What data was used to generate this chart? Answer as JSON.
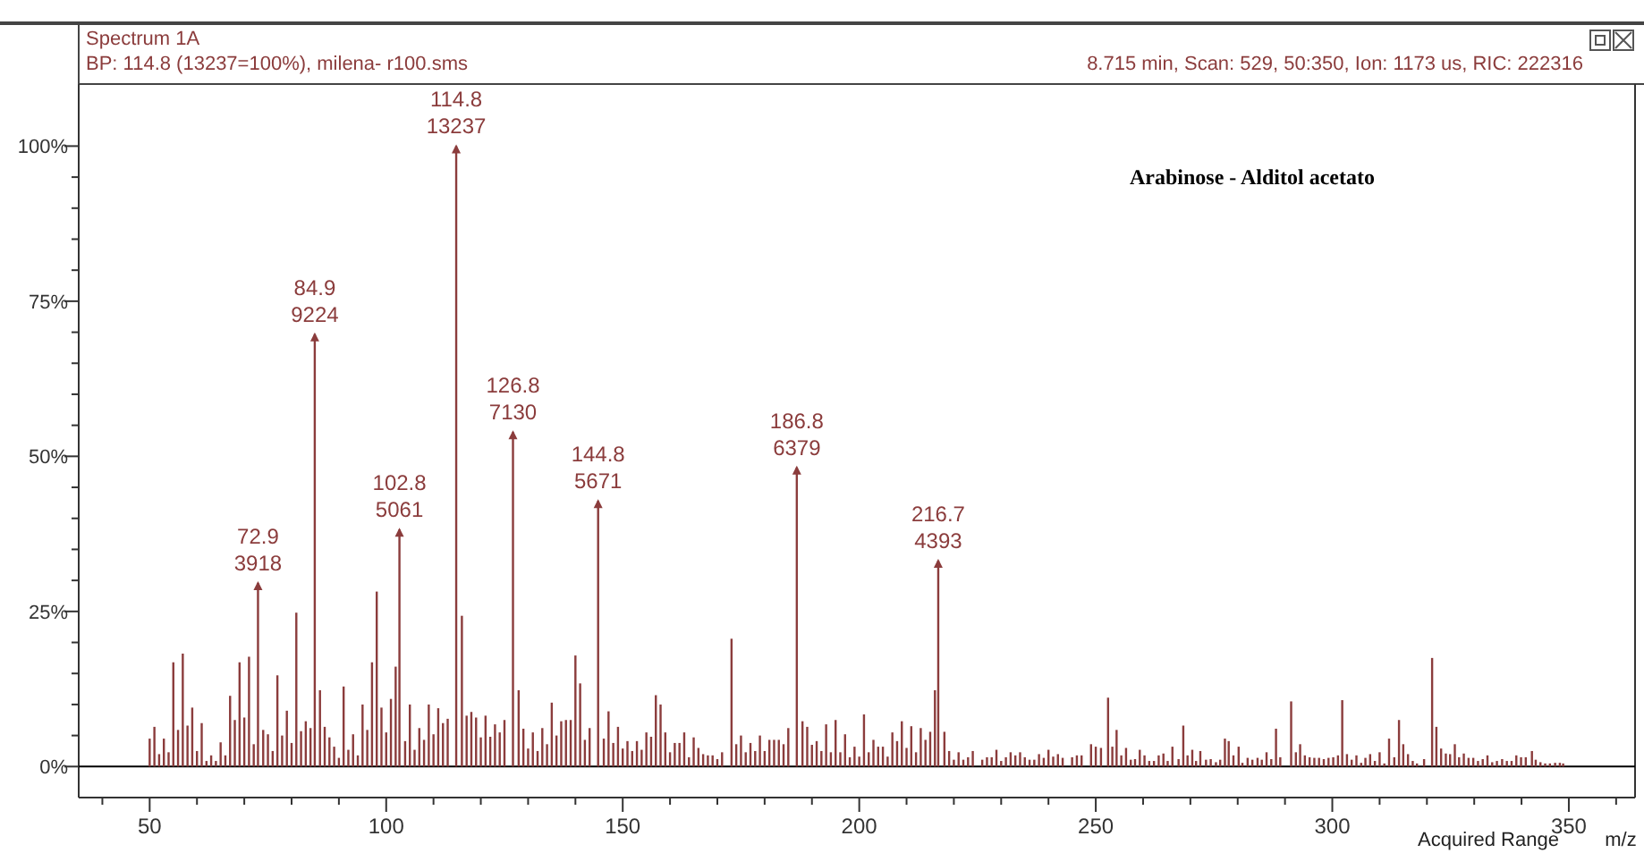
{
  "chart_data": {
    "type": "bar",
    "title": "Spectrum 1A",
    "subtitle": "BP: 114.8 (13237=100%), milena- r100.sms",
    "xlabel": "m/z",
    "xlim": [
      35,
      364
    ],
    "ylim": [
      -5,
      110
    ],
    "xticks": [
      {
        "value": 40,
        "label": null
      },
      50,
      {
        "value": 60,
        "label": null
      },
      {
        "value": 70,
        "label": null
      },
      {
        "value": 80,
        "label": null
      },
      {
        "value": 90,
        "label": null
      },
      100,
      {
        "value": 110,
        "label": null
      },
      {
        "value": 120,
        "label": null
      },
      {
        "value": 130,
        "label": null
      },
      {
        "value": 140,
        "label": null
      },
      150,
      {
        "value": 160,
        "label": null
      },
      {
        "value": 170,
        "label": null
      },
      {
        "value": 180,
        "label": null
      },
      {
        "value": 190,
        "label": null
      },
      200,
      {
        "value": 210,
        "label": null
      },
      {
        "value": 220,
        "label": null
      },
      {
        "value": 230,
        "label": null
      },
      {
        "value": 240,
        "label": null
      },
      250,
      {
        "value": 260,
        "label": null
      },
      {
        "value": 270,
        "label": null
      },
      {
        "value": 280,
        "label": null
      },
      {
        "value": 290,
        "label": null
      },
      300,
      {
        "value": 310,
        "label": null
      },
      {
        "value": 320,
        "label": null
      },
      {
        "value": 330,
        "label": null
      },
      {
        "value": 340,
        "label": null
      },
      350,
      {
        "value": 360,
        "label": null
      }
    ],
    "yticks": [
      {
        "value": 0,
        "label": "0%"
      },
      {
        "value": 5,
        "label": null
      },
      {
        "value": 10,
        "label": null
      },
      {
        "value": 15,
        "label": null
      },
      {
        "value": 20,
        "label": null
      },
      {
        "value": 25,
        "label": "25%"
      },
      {
        "value": 30,
        "label": null
      },
      {
        "value": 35,
        "label": null
      },
      {
        "value": 40,
        "label": null
      },
      {
        "value": 45,
        "label": null
      },
      {
        "value": 50,
        "label": "50%"
      },
      {
        "value": 55,
        "label": null
      },
      {
        "value": 60,
        "label": null
      },
      {
        "value": 65,
        "label": null
      },
      {
        "value": 70,
        "label": null
      },
      {
        "value": 75,
        "label": "75%"
      },
      {
        "value": 80,
        "label": null
      },
      {
        "value": 85,
        "label": null
      },
      {
        "value": 90,
        "label": null
      },
      {
        "value": 95,
        "label": null
      },
      {
        "value": 100,
        "label": "100%"
      }
    ],
    "color": "#8b3c3c",
    "x": [
      50,
      51,
      52,
      53,
      54,
      55,
      56,
      57,
      58,
      59,
      60,
      61,
      62,
      63,
      64,
      65,
      66,
      67,
      68,
      69,
      70,
      71,
      72,
      72.9,
      74,
      75,
      76,
      77,
      78,
      79,
      80,
      81,
      82,
      83,
      84,
      84.9,
      86,
      87,
      88,
      89,
      90,
      91,
      92,
      93,
      94,
      95,
      96,
      97,
      98,
      99,
      100,
      101,
      102,
      102.8,
      104,
      105,
      106,
      107,
      108,
      109,
      110,
      111,
      112,
      113,
      114.8,
      116,
      117,
      118,
      119,
      120,
      121,
      122,
      123,
      124,
      125,
      126.8,
      128,
      129,
      130,
      131,
      132,
      133,
      134,
      135,
      136,
      137,
      138,
      139,
      140,
      141,
      142,
      143,
      144.8,
      146,
      147,
      148,
      149,
      150,
      151,
      152,
      153,
      154,
      155,
      156,
      157,
      158,
      159,
      160,
      161,
      162,
      163,
      164,
      165,
      166,
      167,
      168,
      169,
      170,
      171,
      173,
      174,
      175,
      176,
      177,
      178,
      179,
      180,
      181,
      182,
      183,
      184,
      185,
      186.8,
      188,
      189,
      190,
      191,
      192,
      193,
      194,
      195,
      196,
      197,
      198,
      199,
      200,
      201,
      202,
      203,
      204,
      205,
      206,
      207,
      208,
      209,
      210,
      211,
      212,
      213,
      214,
      215,
      216,
      216.7,
      218,
      219,
      220,
      221,
      222,
      223,
      224,
      226,
      227,
      228,
      229,
      230,
      231,
      232,
      233,
      234,
      235,
      236,
      237,
      238,
      239,
      240,
      241,
      242,
      243,
      245,
      246,
      247,
      249,
      250,
      251.1,
      252.6,
      253.5,
      254.4,
      255.4,
      256.4,
      257.4,
      258.3,
      259.3,
      260.3,
      261.3,
      262.3,
      263.3,
      264.3,
      265.2,
      266.2,
      267.5,
      268.5,
      269.4,
      270.4,
      271.2,
      272.1,
      273.3,
      274.3,
      275.4,
      276.3,
      277.3,
      278.1,
      279.1,
      280.2,
      281,
      282.1,
      283.1,
      284.2,
      285.1,
      286.1,
      287.1,
      288.1,
      289,
      291.3,
      292.3,
      293.2,
      294.2,
      295.2,
      296.2,
      297.2,
      298.2,
      299.2,
      300.2,
      301.2,
      302.1,
      303.1,
      304.1,
      305.1,
      306.1,
      307,
      308,
      309,
      310,
      311,
      312,
      313.1,
      314.1,
      315,
      316,
      317,
      317.9,
      319.4,
      321.1,
      322,
      323,
      324,
      324.9,
      325.9,
      326.8,
      327.8,
      328.8,
      329.8,
      330.8,
      331.8,
      332.8,
      333.8,
      334.8,
      335.9,
      336.9,
      337.9,
      338.9,
      339.9,
      340.9,
      342.2,
      343,
      344,
      345,
      346,
      347.1,
      348.1,
      348.8
    ],
    "values": [
      4.5,
      6.4,
      2,
      4.5,
      2.3,
      16.8,
      5.9,
      18.2,
      6.6,
      9.5,
      2.5,
      7,
      0.9,
      1.8,
      0.9,
      3.9,
      1.8,
      11.4,
      7.5,
      16.8,
      7.9,
      17.7,
      3.6,
      29.6,
      5.9,
      5.2,
      2.5,
      14.7,
      5,
      9,
      3.8,
      24.8,
      5.7,
      7.3,
      6.2,
      69.7,
      12.3,
      6.4,
      4.7,
      3.2,
      1.4,
      12.9,
      2.7,
      5.2,
      1.8,
      10,
      5.9,
      16.8,
      28.2,
      9.5,
      5.5,
      10.9,
      16.1,
      38.2,
      4.1,
      10,
      2.7,
      6.2,
      4.3,
      10,
      5.2,
      9.4,
      7,
      7.7,
      100,
      24.3,
      8.2,
      8.8,
      7.9,
      4.7,
      8.2,
      4.8,
      6.8,
      5.5,
      7.5,
      53.9,
      12.3,
      6.1,
      2.9,
      5.5,
      2.5,
      6.2,
      3.6,
      10.3,
      5,
      7.3,
      7.5,
      7.5,
      17.9,
      13.4,
      4.3,
      6.2,
      42.8,
      4.5,
      8.9,
      3.8,
      6.4,
      2.9,
      4.1,
      2.5,
      4.1,
      2.7,
      5.5,
      4.8,
      11.5,
      10,
      5.5,
      2.3,
      3.8,
      3.8,
      5.5,
      1.5,
      4.7,
      3,
      2,
      1.8,
      1.8,
      1.2,
      2.3,
      20.6,
      3.6,
      5,
      2.3,
      3.8,
      2.5,
      5,
      2.5,
      4.3,
      4.3,
      4.3,
      3.6,
      6.2,
      48.2,
      7.3,
      6.4,
      3.5,
      4.1,
      2.5,
      6.8,
      2.3,
      7.5,
      2.3,
      5.2,
      1.5,
      3.2,
      1.6,
      8.4,
      2.3,
      4.3,
      3.2,
      3.2,
      1.6,
      5.5,
      4.1,
      7.3,
      3,
      6.5,
      2.3,
      6.2,
      4.3,
      5.6,
      12.3,
      33.2,
      5.6,
      2.5,
      1.1,
      2.3,
      1.1,
      1.5,
      2.5,
      1.1,
      1.5,
      1.5,
      2.7,
      0.9,
      1.5,
      2.3,
      1.8,
      2.3,
      1.5,
      1.1,
      1.1,
      2,
      1.4,
      2.7,
      1.6,
      2,
      1.4,
      1.5,
      1.8,
      1.8,
      3.6,
      3.2,
      3,
      11.1,
      3.2,
      5.9,
      1.8,
      3,
      1.1,
      1.2,
      2.7,
      1.8,
      0.9,
      0.9,
      1.8,
      2.1,
      0.9,
      3.2,
      1.2,
      6.6,
      1.8,
      2.7,
      0.9,
      2.5,
      1.1,
      1.2,
      0.7,
      1.1,
      4.5,
      4.1,
      1.8,
      3.2,
      0.6,
      1.4,
      1.1,
      1.4,
      1.1,
      2.3,
      1.2,
      6.1,
      1.5,
      10.5,
      2.3,
      3.6,
      1.8,
      1.5,
      1.4,
      1.4,
      1.2,
      1.4,
      1.5,
      1.8,
      10.7,
      2,
      1.1,
      1.8,
      0.6,
      1.4,
      2,
      0.9,
      2.3,
      0.5,
      4.5,
      1.5,
      7.5,
      3.6,
      2,
      0.9,
      0.5,
      1.2,
      17.5,
      6.4,
      2.9,
      2.1,
      2,
      3.6,
      1.5,
      2.1,
      1.4,
      1.4,
      0.9,
      1.2,
      1.8,
      0.7,
      0.9,
      1.2,
      0.9,
      0.9,
      1.8,
      1.5,
      1.5,
      2.5,
      1.1,
      0.7,
      0.5,
      0.5,
      0.6,
      0.6,
      0.5
    ],
    "ref_lines": [
      {
        "axis": "y",
        "value": 0,
        "color": "#000000"
      }
    ],
    "annotations": [
      "8.715 min, Scan: 529, 50:350, Ion: 1173 us, RIC: 222316",
      "Arabinose - Alditol acetato",
      "Acquired Range",
      {
        "text": "72.9\n3918",
        "x": 72.9,
        "y": 29.6
      },
      {
        "text": "84.9\n9224",
        "x": 84.9,
        "y": 69.7
      },
      {
        "text": "102.8\n5061",
        "x": 102.8,
        "y": 38.2
      },
      {
        "text": "114.8\n13237",
        "x": 114.8,
        "y": 100
      },
      {
        "text": "126.8\n7130",
        "x": 126.8,
        "y": 53.9
      },
      {
        "text": "144.8\n5671",
        "x": 144.8,
        "y": 42.8
      },
      {
        "text": "186.8\n6379",
        "x": 186.8,
        "y": 48.2
      },
      {
        "text": "216.7\n4393",
        "x": 216.7,
        "y": 33.2
      }
    ]
  }
}
